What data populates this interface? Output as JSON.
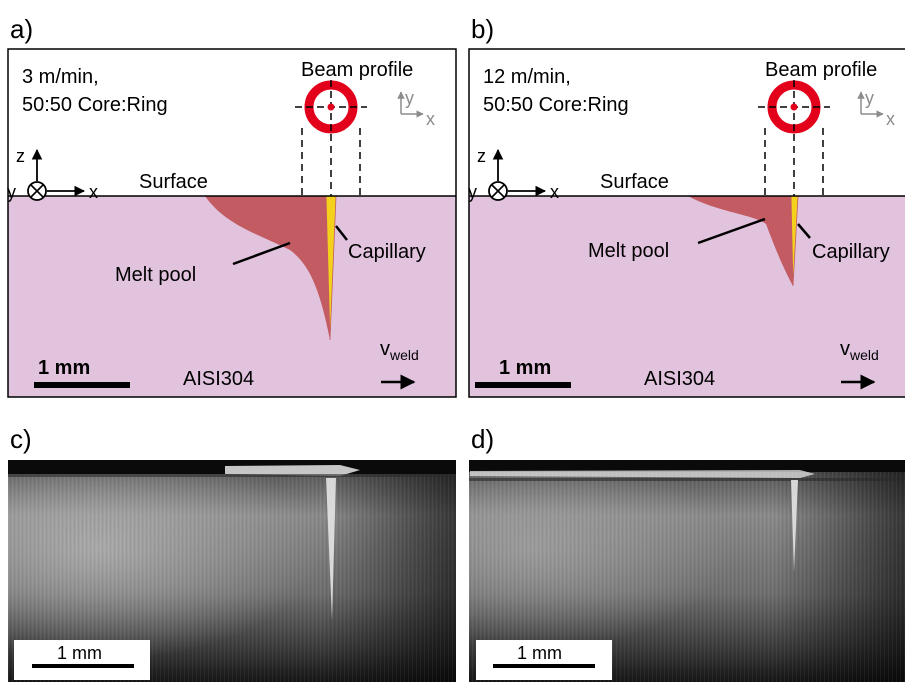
{
  "panels": {
    "a": {
      "letter": "a)",
      "speed": "3 m/min,",
      "mode": "50:50 Core:Ring",
      "beam_profile": "Beam profile",
      "axis_y": "y",
      "axis_x": "x",
      "axis_z": "z",
      "axis_y_out": "y",
      "surface": "Surface",
      "melt_pool": "Melt pool",
      "capillary": "Capillary",
      "scale": "1 mm",
      "material": "AISI304",
      "velocity": "v",
      "velocity_sub": "weld"
    },
    "b": {
      "letter": "b)",
      "speed": "12 m/min,",
      "mode": "50:50 Core:Ring",
      "beam_profile": "Beam profile",
      "axis_y": "y",
      "axis_x": "x",
      "axis_z": "z",
      "axis_y_out": "y",
      "surface": "Surface",
      "melt_pool": "Melt pool",
      "capillary": "Capillary",
      "scale": "1 mm",
      "material": "AISI304",
      "velocity": "v",
      "velocity_sub": "weld"
    },
    "c": {
      "letter": "c)",
      "scale": "1 mm"
    },
    "d": {
      "letter": "d)",
      "scale": "1 mm"
    }
  },
  "colors": {
    "material": "#e2c3de",
    "melt_pool": "#c25c62",
    "capillary": "#f4d21c",
    "beam_ring": "#e3001b",
    "axis_gray": "#8c8c8c"
  }
}
